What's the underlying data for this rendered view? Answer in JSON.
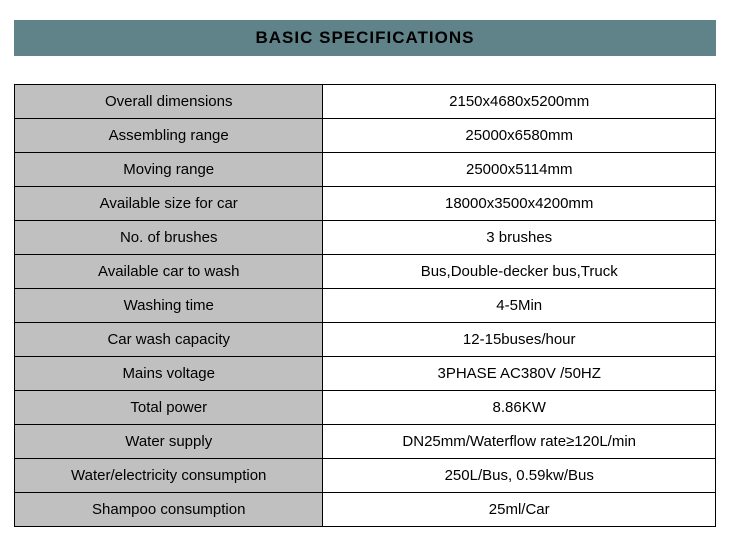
{
  "header": {
    "title": "BASIC SPECIFICATIONS",
    "background_color": "#5f8388",
    "text_color": "#000000",
    "fontsize": 17
  },
  "table": {
    "label_bg": "#c0c0c0",
    "value_bg": "#ffffff",
    "border_color": "#000000",
    "rows": [
      {
        "label": "Overall dimensions",
        "value": "2150x4680x5200mm"
      },
      {
        "label": "Assembling range",
        "value": "25000x6580mm"
      },
      {
        "label": "Moving range",
        "value": "25000x5114mm"
      },
      {
        "label": "Available size for car",
        "value": "18000x3500x4200mm"
      },
      {
        "label": "No. of brushes",
        "value": "3 brushes"
      },
      {
        "label": "Available car to wash",
        "value": "Bus,Double-decker bus,Truck"
      },
      {
        "label": "Washing time",
        "value": "4-5Min"
      },
      {
        "label": "Car wash capacity",
        "value": "12-15buses/hour"
      },
      {
        "label": "Mains voltage",
        "value": "3PHASE AC380V /50HZ"
      },
      {
        "label": "Total power",
        "value": "8.86KW"
      },
      {
        "label": "Water supply",
        "value": "DN25mm/Waterflow rate≥120L/min"
      },
      {
        "label": "Water/electricity consumption",
        "value": "250L/Bus, 0.59kw/Bus"
      },
      {
        "label": "Shampoo consumption",
        "value": "25ml/Car"
      }
    ]
  }
}
